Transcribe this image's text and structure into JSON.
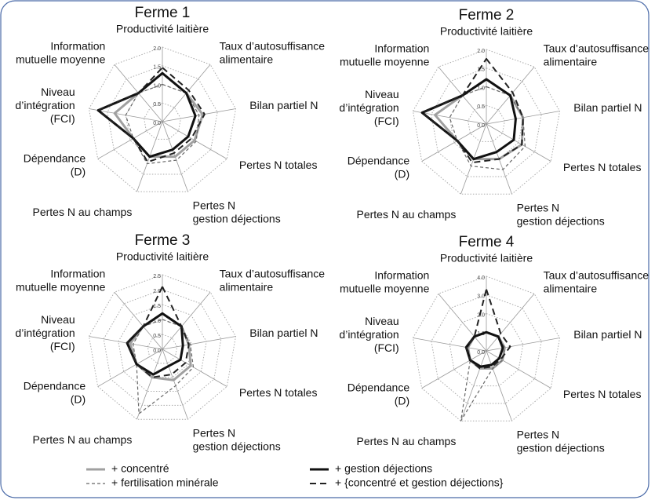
{
  "chart_data": [
    {
      "type": "radar",
      "title": "Ferme 1",
      "categories": [
        [
          "Productivité laitière"
        ],
        [
          "Taux d’autosuffisance",
          "alimentaire"
        ],
        [
          "Bilan partiel N"
        ],
        [
          "Pertes N totales"
        ],
        [
          "Pertes N",
          "gestion déjections"
        ],
        [
          "Pertes N au champs"
        ],
        [
          "Dépendance",
          "(D)"
        ],
        [
          "Niveau",
          "d’intégration",
          "(FCI)"
        ],
        [
          "Information",
          "mutuelle moyenne"
        ]
      ],
      "rlim": [
        0,
        2
      ],
      "rticks": [
        {
          "value": 0,
          "label": "0.0"
        },
        {
          "value": 0.5,
          "label": "0.5"
        },
        {
          "value": 1,
          "label": "1.0"
        },
        {
          "value": 1.5,
          "label": "1.5"
        },
        {
          "value": 2,
          "label": "2.0"
        }
      ],
      "series": [
        {
          "values": [
            1.3,
            1.0,
            1.1,
            1.0,
            1.0,
            1.0,
            0.9,
            1.3,
            1.0
          ]
        },
        {
          "values": [
            1.0,
            1.0,
            1.0,
            1.05,
            1.1,
            1.2,
            0.9,
            1.0,
            1.0
          ]
        },
        {
          "values": [
            1.3,
            1.0,
            0.9,
            0.8,
            0.8,
            1.0,
            0.9,
            1.75,
            1.0
          ]
        },
        {
          "values": [
            1.45,
            1.1,
            1.15,
            0.9,
            0.9,
            1.15,
            0.9,
            1.75,
            1.0
          ]
        }
      ]
    },
    {
      "type": "radar",
      "title": "Ferme 2",
      "categories": [
        [
          "Productivité laitière"
        ],
        [
          "Taux d’autosuffisance",
          "alimentaire"
        ],
        [
          "Bilan partiel N"
        ],
        [
          "Pertes N totales"
        ],
        [
          "Pertes N",
          "gestion déjections"
        ],
        [
          "Pertes N au champs"
        ],
        [
          "Dépendance",
          "(D)"
        ],
        [
          "Niveau",
          "d’intégration",
          "(FCI)"
        ],
        [
          "Information",
          "mutuelle moyenne"
        ]
      ],
      "rlim": [
        0,
        2
      ],
      "rticks": [
        {
          "value": 0,
          "label": "0.0"
        },
        {
          "value": 0.5,
          "label": "0.5"
        },
        {
          "value": 1,
          "label": "1.0"
        },
        {
          "value": 1.5,
          "label": "1.5"
        },
        {
          "value": 2,
          "label": "2.0"
        }
      ],
      "series": [
        {
          "values": [
            1.2,
            1.0,
            1.0,
            1.1,
            1.0,
            1.0,
            0.9,
            1.4,
            1.0
          ]
        },
        {
          "values": [
            1.0,
            1.0,
            1.0,
            1.2,
            1.3,
            1.2,
            0.9,
            1.0,
            1.0
          ]
        },
        {
          "values": [
            1.2,
            1.0,
            0.8,
            0.85,
            0.8,
            1.0,
            0.9,
            1.75,
            1.0
          ]
        },
        {
          "values": [
            1.75,
            1.1,
            1.0,
            1.1,
            1.0,
            1.1,
            0.9,
            1.75,
            1.0
          ]
        }
      ]
    },
    {
      "type": "radar",
      "title": "Ferme 3",
      "categories": [
        [
          "Productivité laitière"
        ],
        [
          "Taux d’autosuffisance",
          "alimentaire"
        ],
        [
          "Bilan partiel N"
        ],
        [
          "Pertes N totales"
        ],
        [
          "Pertes N",
          "gestion déjections"
        ],
        [
          "Pertes N au champs"
        ],
        [
          "Dépendance",
          "(D)"
        ],
        [
          "Niveau",
          "d’intégration",
          "(FCI)"
        ],
        [
          "Information",
          "mutuelle moyenne"
        ]
      ],
      "rlim": [
        0,
        2.5
      ],
      "rticks": [
        {
          "value": 0,
          "label": "0.0"
        },
        {
          "value": 0.5,
          "label": "0.5"
        },
        {
          "value": 1,
          "label": "1.0"
        },
        {
          "value": 1.5,
          "label": "1.5"
        },
        {
          "value": 2,
          "label": "2.0"
        },
        {
          "value": 2.5,
          "label": "2.5"
        }
      ],
      "series": [
        {
          "values": [
            1.2,
            1.0,
            0.9,
            1.1,
            1.1,
            1.0,
            1.0,
            1.1,
            1.0
          ]
        },
        {
          "values": [
            1.0,
            1.0,
            0.95,
            1.2,
            1.3,
            2.3,
            1.0,
            1.0,
            1.0
          ]
        },
        {
          "values": [
            1.2,
            1.0,
            0.7,
            0.7,
            0.6,
            0.9,
            1.0,
            1.2,
            1.0
          ]
        },
        {
          "values": [
            2.1,
            1.0,
            0.9,
            0.9,
            0.9,
            1.0,
            1.0,
            1.2,
            1.0
          ]
        }
      ]
    },
    {
      "type": "radar",
      "title": "Ferme 4",
      "categories": [
        [
          "Productivité laitière"
        ],
        [
          "Taux d’autosuffisance",
          "alimentaire"
        ],
        [
          "Bilan partiel N"
        ],
        [
          "Pertes N totales"
        ],
        [
          "Pertes N",
          "gestion déjections"
        ],
        [
          "Pertes N au champs"
        ],
        [
          "Dépendance",
          "(D)"
        ],
        [
          "Niveau",
          "d’intégration",
          "(FCI)"
        ],
        [
          "Information",
          "mutuelle moyenne"
        ]
      ],
      "rlim": [
        0,
        4
      ],
      "rticks": [
        {
          "value": 0,
          "label": "0.0"
        },
        {
          "value": 1,
          "label": "1.0"
        },
        {
          "value": 2,
          "label": "2.0"
        },
        {
          "value": 3,
          "label": "3.0"
        },
        {
          "value": 4,
          "label": "4.0"
        }
      ],
      "series": [
        {
          "values": [
            1.0,
            1.0,
            1.0,
            1.0,
            1.0,
            1.0,
            1.0,
            1.0,
            1.0
          ]
        },
        {
          "values": [
            1.0,
            1.0,
            1.0,
            1.0,
            1.0,
            4.0,
            1.0,
            1.0,
            1.0
          ]
        },
        {
          "values": [
            1.0,
            1.0,
            0.9,
            0.8,
            0.8,
            0.9,
            1.0,
            1.1,
            1.0
          ]
        },
        {
          "values": [
            3.3,
            1.2,
            1.3,
            0.9,
            0.9,
            1.0,
            1.0,
            1.1,
            1.0
          ]
        }
      ]
    }
  ],
  "legend": [
    {
      "name": "+ concentré",
      "color": "#a0a0a0",
      "dash": "none",
      "width": 3
    },
    {
      "name": "+ fertilisation minérale",
      "color": "#666666",
      "dash": "4 3",
      "width": 1.2
    },
    {
      "name": "+ gestion déjections",
      "color": "#111111",
      "dash": "none",
      "width": 3
    },
    {
      "name": "+ {concentré et gestion déjections}",
      "color": "#222222",
      "dash": "8 5",
      "width": 2
    }
  ]
}
